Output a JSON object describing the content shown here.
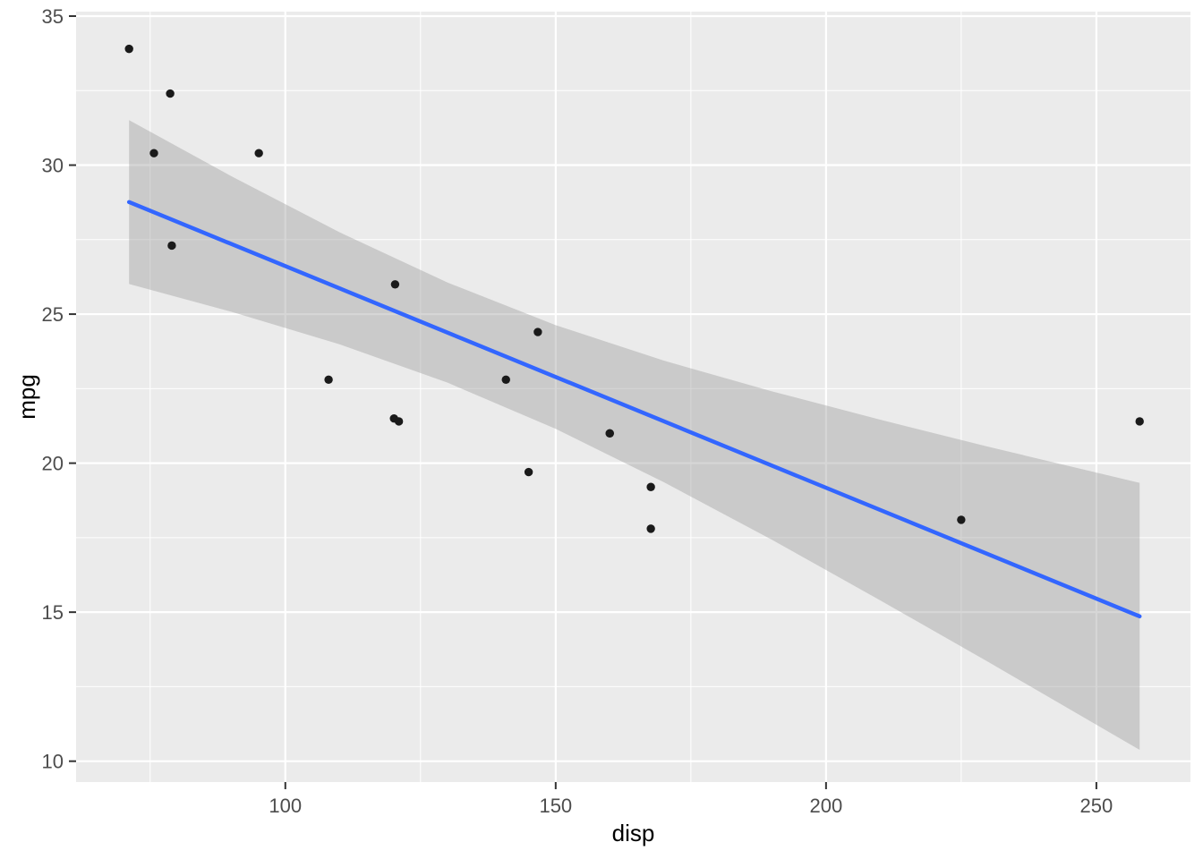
{
  "chart_data": {
    "type": "scatter",
    "title": "",
    "xlabel": "disp",
    "ylabel": "mpg",
    "xlim": [
      61.3,
      267.4
    ],
    "ylim": [
      9.3,
      35.15
    ],
    "x_major_ticks": [
      100,
      150,
      200,
      250
    ],
    "x_minor_ticks": [
      75,
      125,
      175,
      225
    ],
    "y_major_ticks": [
      10,
      15,
      20,
      25,
      30,
      35
    ],
    "y_minor_ticks": [
      12.5,
      17.5,
      22.5,
      27.5,
      32.5
    ],
    "grid": "on",
    "legend": "none",
    "points": [
      [
        160,
        21.0
      ],
      [
        160,
        21.0
      ],
      [
        108,
        22.8
      ],
      [
        258,
        21.4
      ],
      [
        225,
        18.1
      ],
      [
        146.7,
        24.4
      ],
      [
        140.8,
        22.8
      ],
      [
        167.6,
        19.2
      ],
      [
        167.6,
        17.8
      ],
      [
        78.7,
        32.4
      ],
      [
        75.7,
        30.4
      ],
      [
        71.1,
        33.9
      ],
      [
        120.1,
        21.5
      ],
      [
        79,
        27.3
      ],
      [
        120.3,
        26.0
      ],
      [
        95.1,
        30.4
      ],
      [
        145,
        19.7
      ],
      [
        121,
        21.4
      ]
    ],
    "regression_line": {
      "method": "lm",
      "x": [
        71.1,
        258
      ],
      "y": [
        28.76,
        14.86
      ]
    },
    "confidence_ribbon": {
      "x": [
        71.1,
        90,
        110,
        130,
        150,
        170,
        190,
        210,
        230,
        258
      ],
      "upper": [
        31.51,
        29.63,
        27.75,
        26.06,
        24.63,
        23.44,
        22.41,
        21.46,
        20.55,
        19.34
      ],
      "lower": [
        26.01,
        25.08,
        23.99,
        22.7,
        21.15,
        19.36,
        17.43,
        15.4,
        13.33,
        10.38
      ]
    },
    "colors": {
      "background": "#FFFFFF",
      "panel_background": "#EBEBEB",
      "grid": "#FFFFFF",
      "point": "#1A1A1A",
      "smooth_line": "#3366FF",
      "ribbon": "#999999",
      "ribbon_opacity": 0.4,
      "axis_text": "#4D4D4D",
      "axis_title": "#000000",
      "tick_mark": "#333333"
    }
  }
}
